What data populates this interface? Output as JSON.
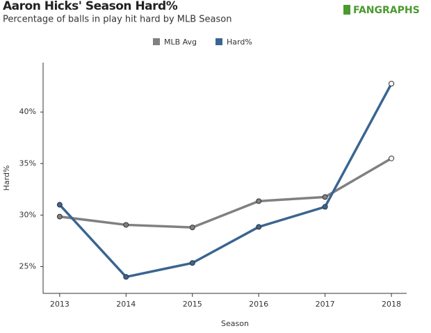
{
  "chart_data": {
    "type": "line",
    "title": "Aaron Hicks' Season Hard%",
    "subtitle": "Percentage of balls in play hit hard by MLB Season",
    "logo": "FANGRAPHS",
    "x_label": "Season",
    "y_label": "Hard%",
    "x": [
      2013,
      2014,
      2015,
      2016,
      2017,
      2018
    ],
    "xlim": [
      2012.75,
      2018.23
    ],
    "xticks": [
      2013,
      2014,
      2015,
      2016,
      2017,
      2018
    ],
    "ylim": [
      22.4,
      44.8
    ],
    "yticks": [
      {
        "value": 25,
        "label": "25%"
      },
      {
        "value": 30,
        "label": "30%"
      },
      {
        "value": 35,
        "label": "35%"
      },
      {
        "value": 40,
        "label": "40%"
      }
    ],
    "grid": false,
    "legend": "top",
    "series": [
      {
        "name": "MLB Avg",
        "color": "#808080",
        "values": [
          29.85,
          29.05,
          28.8,
          31.35,
          31.75,
          35.5
        ]
      },
      {
        "name": "Hard%",
        "color": "#3a6591",
        "values": [
          31.0,
          24.0,
          25.35,
          28.85,
          30.8,
          42.75
        ]
      }
    ]
  }
}
